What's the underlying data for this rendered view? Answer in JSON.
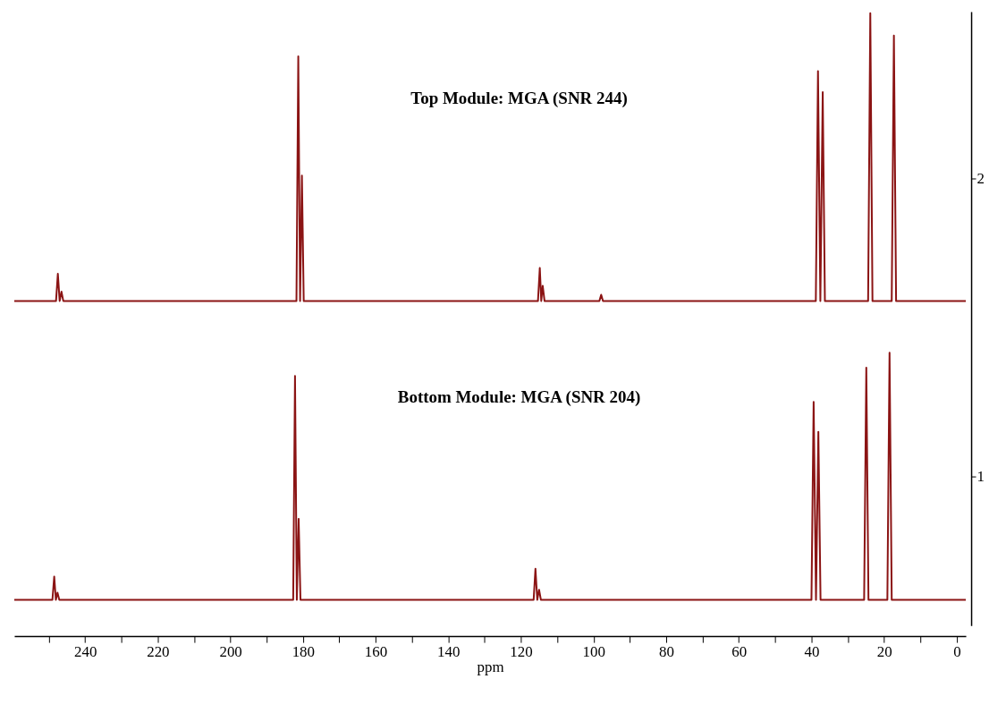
{
  "chart_data": {
    "type": "line",
    "xlabel": "ppm",
    "xlim": [
      259.5,
      -2.5
    ],
    "ylim": [
      0.5,
      2.56
    ],
    "xticks": [
      {
        "value": 250,
        "label": null
      },
      240,
      {
        "value": 230,
        "label": null
      },
      220,
      {
        "value": 210,
        "label": null
      },
      200,
      {
        "value": 190,
        "label": null
      },
      180,
      {
        "value": 170,
        "label": null
      },
      160,
      {
        "value": 150,
        "label": null
      },
      140,
      {
        "value": 130,
        "label": null
      },
      120,
      {
        "value": 110,
        "label": null
      },
      100,
      {
        "value": 90,
        "label": null
      },
      80,
      {
        "value": 70,
        "label": null
      },
      60,
      {
        "value": 50,
        "label": null
      },
      40,
      {
        "value": 30,
        "label": null
      },
      20,
      {
        "value": 10,
        "label": null
      },
      0
    ],
    "annotations": [
      "Top Module:  MGA (SNR 244)",
      "Bottom Module:  MGA (SNR 204)"
    ],
    "yticks": [
      1,
      2
    ],
    "grid": false,
    "legend": false,
    "marker": "none",
    "line_style": "solid",
    "series": [
      {
        "color": "#8b1414",
        "x": [
          259.5,
          248,
          247.5,
          247,
          246.5,
          246,
          181.8,
          181.3,
          180.8,
          180.3,
          179.8,
          115.3,
          114.8,
          114.4,
          114.0,
          113.5,
          98.4,
          97.9,
          97.4,
          38.8,
          38.2,
          37.55,
          36.9,
          36.3,
          24.4,
          23.8,
          23.2,
          17.9,
          17.3,
          16.7,
          -2.5
        ],
        "values": [
          1.589,
          1.589,
          1.68,
          1.589,
          1.62,
          1.589,
          1.589,
          2.41,
          1.589,
          2.01,
          1.589,
          1.589,
          1.7,
          1.589,
          1.64,
          1.589,
          1.589,
          1.61,
          1.589,
          1.589,
          2.36,
          1.589,
          2.29,
          1.589,
          1.589,
          2.555,
          1.589,
          1.589,
          2.48,
          1.589,
          1.589
        ]
      },
      {
        "color": "#8b1414",
        "x": [
          259.5,
          249,
          248.5,
          248.05,
          247.6,
          247.1,
          182.7,
          182.2,
          181.7,
          181.2,
          180.7,
          116.5,
          116.0,
          115.5,
          115.0,
          114.5,
          40,
          39.4,
          38.75,
          38.1,
          37.5,
          25.5,
          24.9,
          24.3,
          19.1,
          18.5,
          17.9,
          -2.5
        ],
        "values": [
          0.586,
          0.586,
          0.664,
          0.586,
          0.61,
          0.586,
          0.586,
          1.337,
          0.586,
          0.858,
          0.586,
          0.586,
          0.69,
          0.586,
          0.62,
          0.586,
          0.586,
          1.25,
          0.586,
          1.15,
          0.586,
          0.586,
          1.365,
          0.586,
          0.586,
          1.415,
          0.586,
          0.586
        ]
      }
    ]
  }
}
